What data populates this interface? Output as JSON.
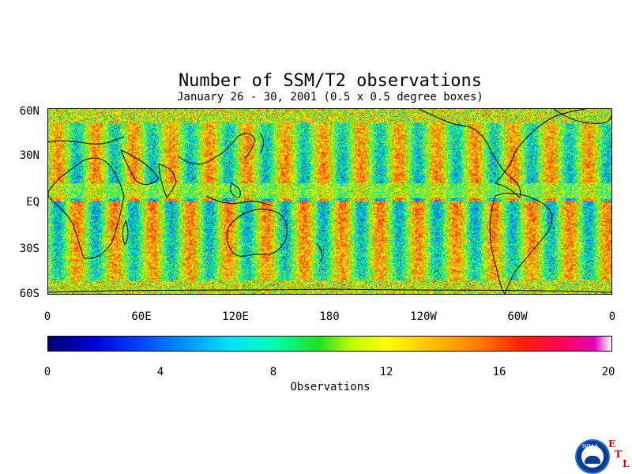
{
  "title": "Number of SSM/T2 observations",
  "subtitle": "January 26 - 30, 2001 (0.5 x 0.5 degree boxes)",
  "map": {
    "lat_labels": [
      "60N",
      "30N",
      "EQ",
      "30S",
      "60S"
    ],
    "lon_labels": [
      "0",
      "60E",
      "120E",
      "180",
      "120W",
      "60W",
      "0"
    ]
  },
  "colorbar": {
    "ticks": [
      "0",
      "4",
      "8",
      "12",
      "16",
      "20"
    ],
    "title": "Observations",
    "range": [
      0,
      20
    ]
  },
  "logo": {
    "noaa_text": "NOAA",
    "etl_letters": [
      "E",
      "T",
      "L"
    ]
  },
  "colors": {
    "background": "#ffffff",
    "map_base": "#7fd07a",
    "high": "#ff3a10",
    "low": "#00a8ff",
    "etl_red": "#e00000"
  }
}
